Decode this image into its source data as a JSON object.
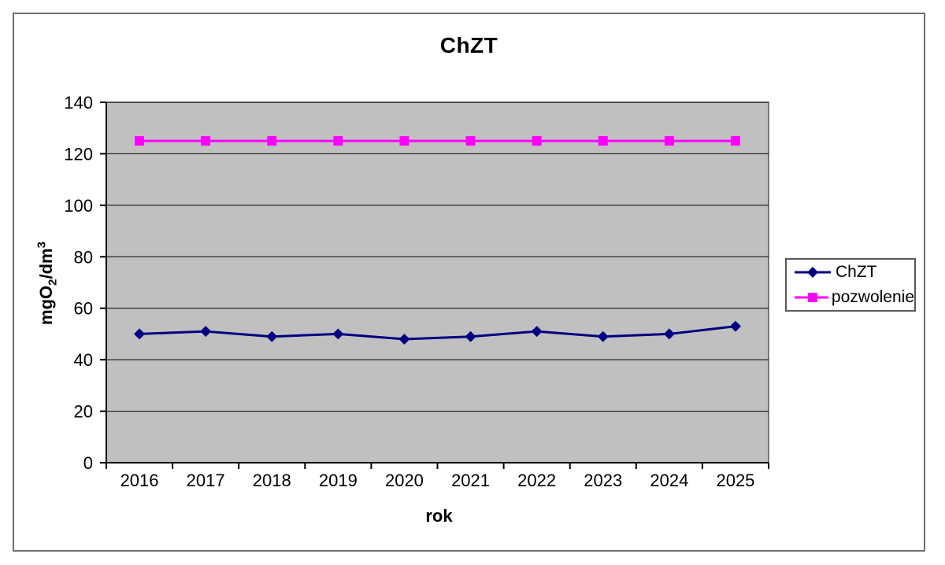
{
  "chart_data": {
    "type": "line",
    "title": "ChZT",
    "xlabel": "rok",
    "ylabel": "mgO2/dm3",
    "ylabel_parts": {
      "prefix": "mgO",
      "sub": "2",
      "mid": "/dm",
      "sup": "3"
    },
    "categories": [
      "2016",
      "2017",
      "2018",
      "2019",
      "2020",
      "2021",
      "2022",
      "2023",
      "2024",
      "2025"
    ],
    "y_ticks": [
      0,
      20,
      40,
      60,
      80,
      100,
      120,
      140
    ],
    "ylim": [
      0,
      140
    ],
    "grid": "horizontal-only",
    "legend_position": "right",
    "plot_bg_color": "#c0c0c0",
    "gridline_color": "#000000",
    "axis_color": "#000000",
    "series": [
      {
        "name": "ChZT",
        "color": "#000080",
        "marker": "diamond",
        "values": [
          50,
          51,
          49,
          50,
          48,
          49,
          51,
          49,
          50,
          53
        ]
      },
      {
        "name": "pozwolenie",
        "color": "#ff00ff",
        "marker": "square",
        "values": [
          125,
          125,
          125,
          125,
          125,
          125,
          125,
          125,
          125,
          125
        ]
      }
    ]
  }
}
